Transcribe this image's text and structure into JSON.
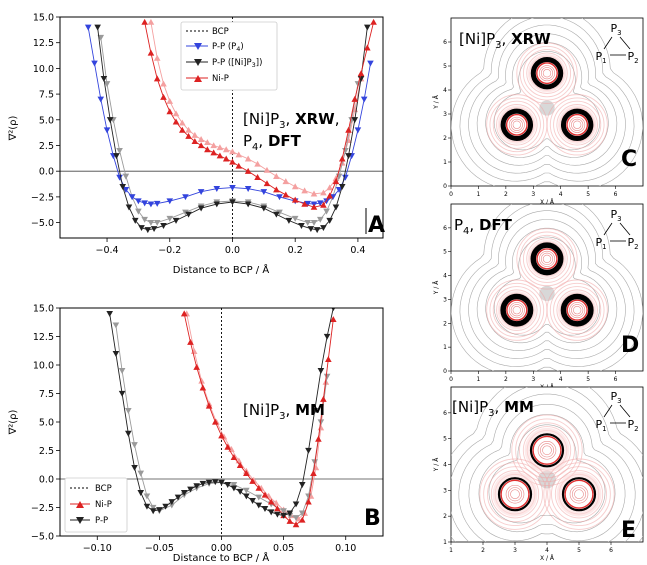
{
  "panel_letters": [
    "A",
    "B",
    "C",
    "D",
    "E"
  ],
  "legend_A": [
    "BCP",
    "P-P (P",
    "4",
    ")",
    "P-P ([Ni]P",
    "3",
    "])",
    "Ni-P"
  ],
  "legend_B": [
    "BCP",
    "Ni-P",
    "P-P"
  ],
  "annot_A": {
    "l1": [
      "[Ni]P",
      "3",
      ", ",
      "XRW",
      ","
    ],
    "l2": [
      "P",
      "4",
      ", ",
      "DFT"
    ]
  },
  "annot_B": [
    "[Ni]P",
    "3",
    ", ",
    "MM"
  ],
  "map_titles": {
    "C": [
      "[Ni]P",
      "3",
      ", ",
      "XRW"
    ],
    "D": [
      "P",
      "4",
      ", ",
      "DFT"
    ],
    "E": [
      "[Ni]P",
      "3",
      ", ",
      "MM"
    ]
  },
  "triangle_labels": [
    "P",
    "3",
    "P",
    "1",
    "P",
    "2"
  ],
  "colors": {
    "red": "#dd2222",
    "blue": "#3344dd",
    "black": "#222222",
    "pink": "#f4a0a0"
  },
  "chart_data": [
    {
      "type": "line",
      "panel": "A",
      "xlabel": "Distance to BCP / Å",
      "ylabel": "∇²(ρ)",
      "xlim": [
        -0.55,
        0.48
      ],
      "ylim": [
        -6.5,
        15.0
      ],
      "xticks": [
        "−0.4",
        "−0.2",
        "0.0",
        "0.2",
        "0.4"
      ],
      "xtick_values": [
        -0.4,
        -0.2,
        0.0,
        0.2,
        0.4
      ],
      "yticks": [
        "−5.0",
        "−2.5",
        "0.0",
        "2.5",
        "5.0",
        "7.5",
        "10.0",
        "12.5",
        "15.0"
      ],
      "ytick_values": [
        -5,
        -2.5,
        0,
        2.5,
        5,
        7.5,
        10,
        12.5,
        15
      ],
      "bcp_x": 0,
      "series": [
        {
          "name": "P-P (P4)",
          "color": "#3344dd",
          "marker": "v",
          "x": [
            -0.46,
            -0.44,
            -0.42,
            -0.4,
            -0.38,
            -0.36,
            -0.34,
            -0.32,
            -0.3,
            -0.28,
            -0.26,
            -0.24,
            -0.2,
            -0.15,
            -0.1,
            -0.05,
            0.0,
            0.05,
            0.1,
            0.15,
            0.2,
            0.24,
            0.26,
            0.28,
            0.3,
            0.32,
            0.34,
            0.36,
            0.38,
            0.4,
            0.42,
            0.44
          ],
          "y": [
            14,
            10.5,
            7,
            4,
            1.5,
            -0.6,
            -1.8,
            -2.5,
            -2.9,
            -3.1,
            -3.2,
            -3.15,
            -2.9,
            -2.5,
            -2.0,
            -1.7,
            -1.6,
            -1.7,
            -2.0,
            -2.5,
            -2.9,
            -3.15,
            -3.2,
            -3.1,
            -2.9,
            -2.5,
            -1.8,
            -0.6,
            1.5,
            4,
            7,
            10.5
          ]
        },
        {
          "name": "P-P ([Ni]P3)",
          "color": "#222222",
          "marker": "v",
          "x": [
            -0.43,
            -0.41,
            -0.39,
            -0.37,
            -0.35,
            -0.33,
            -0.31,
            -0.29,
            -0.27,
            -0.25,
            -0.22,
            -0.18,
            -0.14,
            -0.1,
            -0.05,
            0.0,
            0.05,
            0.1,
            0.14,
            0.18,
            0.22,
            0.25,
            0.27,
            0.29,
            0.31,
            0.33,
            0.35,
            0.37,
            0.39,
            0.41,
            0.43
          ],
          "y": [
            14,
            9,
            5,
            1.5,
            -1.5,
            -3.5,
            -4.8,
            -5.5,
            -5.7,
            -5.6,
            -5.3,
            -4.8,
            -4.2,
            -3.6,
            -3.2,
            -3.0,
            -3.2,
            -3.6,
            -4.2,
            -4.8,
            -5.3,
            -5.6,
            -5.7,
            -5.5,
            -4.8,
            -3.5,
            -1.5,
            1.5,
            5,
            9,
            14
          ]
        },
        {
          "name": "Ni-P",
          "color": "#dd2222",
          "marker": "^",
          "x": [
            -0.28,
            -0.26,
            -0.24,
            -0.22,
            -0.2,
            -0.18,
            -0.16,
            -0.14,
            -0.12,
            -0.1,
            -0.08,
            -0.06,
            -0.04,
            -0.02,
            0.0,
            0.02,
            0.05,
            0.08,
            0.11,
            0.14,
            0.17,
            0.2,
            0.23,
            0.26,
            0.29,
            0.31,
            0.33,
            0.35,
            0.37,
            0.39,
            0.41,
            0.43,
            0.45
          ],
          "y": [
            14.5,
            11.5,
            9,
            7.2,
            5.8,
            4.8,
            4.0,
            3.4,
            2.9,
            2.5,
            2.1,
            1.8,
            1.5,
            1.2,
            0.9,
            0.5,
            0.0,
            -0.6,
            -1.2,
            -1.8,
            -2.3,
            -2.8,
            -3.2,
            -3.5,
            -3.3,
            -2.4,
            -1.0,
            1.2,
            4,
            7,
            9.5,
            12,
            14.5
          ]
        },
        {
          "name": "Ni-P (faint)",
          "color": "#f4a0a0",
          "marker": "^",
          "x": [
            -0.26,
            -0.24,
            -0.22,
            -0.2,
            -0.18,
            -0.16,
            -0.14,
            -0.12,
            -0.1,
            -0.08,
            -0.06,
            -0.04,
            -0.02,
            0.0,
            0.02,
            0.05,
            0.08,
            0.11,
            0.14,
            0.17,
            0.2,
            0.23,
            0.26,
            0.29,
            0.31,
            0.33,
            0.35,
            0.37,
            0.39,
            0.41
          ],
          "y": [
            14.5,
            11,
            8.5,
            6.8,
            5.6,
            4.7,
            4.0,
            3.5,
            3.1,
            2.8,
            2.5,
            2.3,
            2.1,
            1.9,
            1.6,
            1.2,
            0.7,
            0.1,
            -0.5,
            -1.0,
            -1.5,
            -1.9,
            -2.2,
            -2.1,
            -1.6,
            -0.7,
            0.8,
            3,
            6,
            9
          ]
        },
        {
          "name": "P-P (faint)",
          "color": "#9a9a9a",
          "marker": "v",
          "x": [
            -0.42,
            -0.4,
            -0.38,
            -0.36,
            -0.34,
            -0.32,
            -0.3,
            -0.28,
            -0.26,
            -0.24,
            -0.2,
            -0.15,
            -0.1,
            -0.05,
            0.0,
            0.05,
            0.1,
            0.15,
            0.2,
            0.24,
            0.26,
            0.28,
            0.3,
            0.32,
            0.34,
            0.36,
            0.38,
            0.4
          ],
          "y": [
            13,
            8.5,
            5,
            2,
            -0.5,
            -2.5,
            -3.9,
            -4.7,
            -5.0,
            -5.0,
            -4.6,
            -4.0,
            -3.4,
            -3.0,
            -2.9,
            -3.0,
            -3.4,
            -4.0,
            -4.6,
            -5.0,
            -5.0,
            -4.7,
            -3.9,
            -2.5,
            -0.5,
            2,
            5,
            8.5
          ]
        }
      ]
    },
    {
      "type": "line",
      "panel": "B",
      "xlabel": "Distance to BCP / Å",
      "ylabel": "∇²(ρ)",
      "xlim": [
        -0.13,
        0.13
      ],
      "ylim": [
        -5.0,
        15.0
      ],
      "xticks": [
        "−0.10",
        "−0.05",
        "0.00",
        "0.05",
        "0.10"
      ],
      "xtick_values": [
        -0.1,
        -0.05,
        0.0,
        0.05,
        0.1
      ],
      "yticks": [
        "−5.0",
        "−2.5",
        "0.0",
        "2.5",
        "5.0",
        "7.5",
        "10.0",
        "12.5",
        "15.0"
      ],
      "ytick_values": [
        -5,
        -2.5,
        0,
        2.5,
        5,
        7.5,
        10,
        12.5,
        15
      ],
      "bcp_x": 0,
      "series": [
        {
          "name": "Ni-P",
          "color": "#dd2222",
          "marker": "^",
          "x": [
            -0.03,
            -0.025,
            -0.02,
            -0.015,
            -0.01,
            -0.005,
            0.0,
            0.005,
            0.01,
            0.015,
            0.02,
            0.025,
            0.03,
            0.035,
            0.04,
            0.045,
            0.05,
            0.055,
            0.06,
            0.065,
            0.07,
            0.074,
            0.078,
            0.082,
            0.086,
            0.09
          ],
          "y": [
            14.5,
            12.0,
            9.8,
            8.0,
            6.4,
            5.0,
            3.8,
            2.8,
            1.9,
            1.2,
            0.5,
            -0.2,
            -0.8,
            -1.4,
            -2.0,
            -2.6,
            -3.2,
            -3.7,
            -4.0,
            -3.6,
            -2.0,
            0.5,
            3.5,
            7,
            10.5,
            14
          ]
        },
        {
          "name": "Ni-P (faint)",
          "color": "#f4a0a0",
          "marker": "^",
          "x": [
            -0.028,
            -0.022,
            -0.016,
            -0.01,
            -0.004,
            0.002,
            0.008,
            0.014,
            0.02,
            0.026,
            0.032,
            0.038,
            0.044,
            0.05,
            0.056,
            0.062,
            0.067,
            0.072,
            0.076,
            0.08,
            0.084
          ],
          "y": [
            14.5,
            11.2,
            8.6,
            6.6,
            5.0,
            3.7,
            2.6,
            1.6,
            0.7,
            -0.1,
            -0.8,
            -1.5,
            -2.1,
            -2.7,
            -3.2,
            -3.5,
            -3.0,
            -1.5,
            1.0,
            4.5,
            8.5
          ]
        },
        {
          "name": "P-P",
          "color": "#222222",
          "marker": "v",
          "x": [
            -0.09,
            -0.085,
            -0.08,
            -0.075,
            -0.07,
            -0.065,
            -0.06,
            -0.055,
            -0.05,
            -0.045,
            -0.04,
            -0.035,
            -0.03,
            -0.025,
            -0.02,
            -0.015,
            -0.01,
            -0.005,
            0.0,
            0.005,
            0.01,
            0.015,
            0.02,
            0.025,
            0.03,
            0.035,
            0.04,
            0.045,
            0.05,
            0.055,
            0.06,
            0.065,
            0.07,
            0.075,
            0.08,
            0.085,
            0.09
          ],
          "y": [
            14.5,
            11.0,
            7.5,
            4.0,
            1.0,
            -1.2,
            -2.4,
            -2.8,
            -2.7,
            -2.4,
            -2.0,
            -1.6,
            -1.2,
            -0.9,
            -0.6,
            -0.4,
            -0.3,
            -0.25,
            -0.3,
            -0.5,
            -0.8,
            -1.1,
            -1.5,
            -1.9,
            -2.3,
            -2.6,
            -2.9,
            -3.1,
            -3.2,
            -3.0,
            -2.2,
            -0.5,
            2.5,
            6,
            9.5,
            12.5,
            15
          ]
        },
        {
          "name": "P-P (faint)",
          "color": "#9a9a9a",
          "marker": "v",
          "x": [
            -0.085,
            -0.08,
            -0.075,
            -0.07,
            -0.065,
            -0.06,
            -0.055,
            -0.05,
            -0.04,
            -0.03,
            -0.02,
            -0.01,
            0.0,
            0.01,
            0.02,
            0.03,
            0.04,
            0.05,
            0.055,
            0.06,
            0.065,
            0.07,
            0.075,
            0.08,
            0.085
          ],
          "y": [
            13.5,
            9.5,
            6.0,
            3.0,
            0.5,
            -1.5,
            -2.5,
            -2.8,
            -2.3,
            -1.4,
            -0.8,
            -0.4,
            -0.3,
            -0.5,
            -1.0,
            -1.6,
            -2.2,
            -2.8,
            -3.2,
            -3.4,
            -3.0,
            -1.5,
            1.5,
            5,
            9
          ]
        }
      ]
    },
    {
      "type": "heatmap",
      "panel": "C",
      "xlabel": "X / Å",
      "ylabel": "Y / Å",
      "xticks": [
        "0",
        "1",
        "2",
        "3",
        "4",
        "5",
        "6"
      ],
      "yticks": [
        "0",
        "1",
        "2",
        "3",
        "4",
        "5",
        "6"
      ],
      "xlim": [
        0,
        7
      ],
      "ylim": [
        0,
        7
      ],
      "atoms": [
        [
          3.5,
          4.7
        ],
        [
          2.4,
          2.55
        ],
        [
          4.6,
          2.55
        ]
      ],
      "center": [
        3.5,
        3.25
      ]
    },
    {
      "type": "heatmap",
      "panel": "D",
      "xlabel": "X / Å",
      "ylabel": "Y / Å",
      "xticks": [
        "0",
        "1",
        "2",
        "3",
        "4",
        "5",
        "6"
      ],
      "yticks": [
        "0",
        "1",
        "2",
        "3",
        "4",
        "5",
        "6"
      ],
      "xlim": [
        0,
        7
      ],
      "ylim": [
        0,
        7
      ],
      "atoms": [
        [
          3.5,
          4.7
        ],
        [
          2.4,
          2.55
        ],
        [
          4.6,
          2.55
        ]
      ],
      "center": [
        3.5,
        3.25
      ]
    },
    {
      "type": "heatmap",
      "panel": "E",
      "xlabel": "X / Å",
      "ylabel": "Y / Å",
      "xticks": [
        "1",
        "2",
        "3",
        "4",
        "5",
        "6"
      ],
      "yticks": [
        "1",
        "2",
        "3",
        "4",
        "5",
        "6"
      ],
      "xlim": [
        1,
        7
      ],
      "ylim": [
        1,
        7
      ],
      "atoms": [
        [
          4.0,
          4.55
        ],
        [
          3.0,
          2.85
        ],
        [
          5.0,
          2.85
        ]
      ],
      "center": [
        4.0,
        3.42
      ]
    }
  ]
}
